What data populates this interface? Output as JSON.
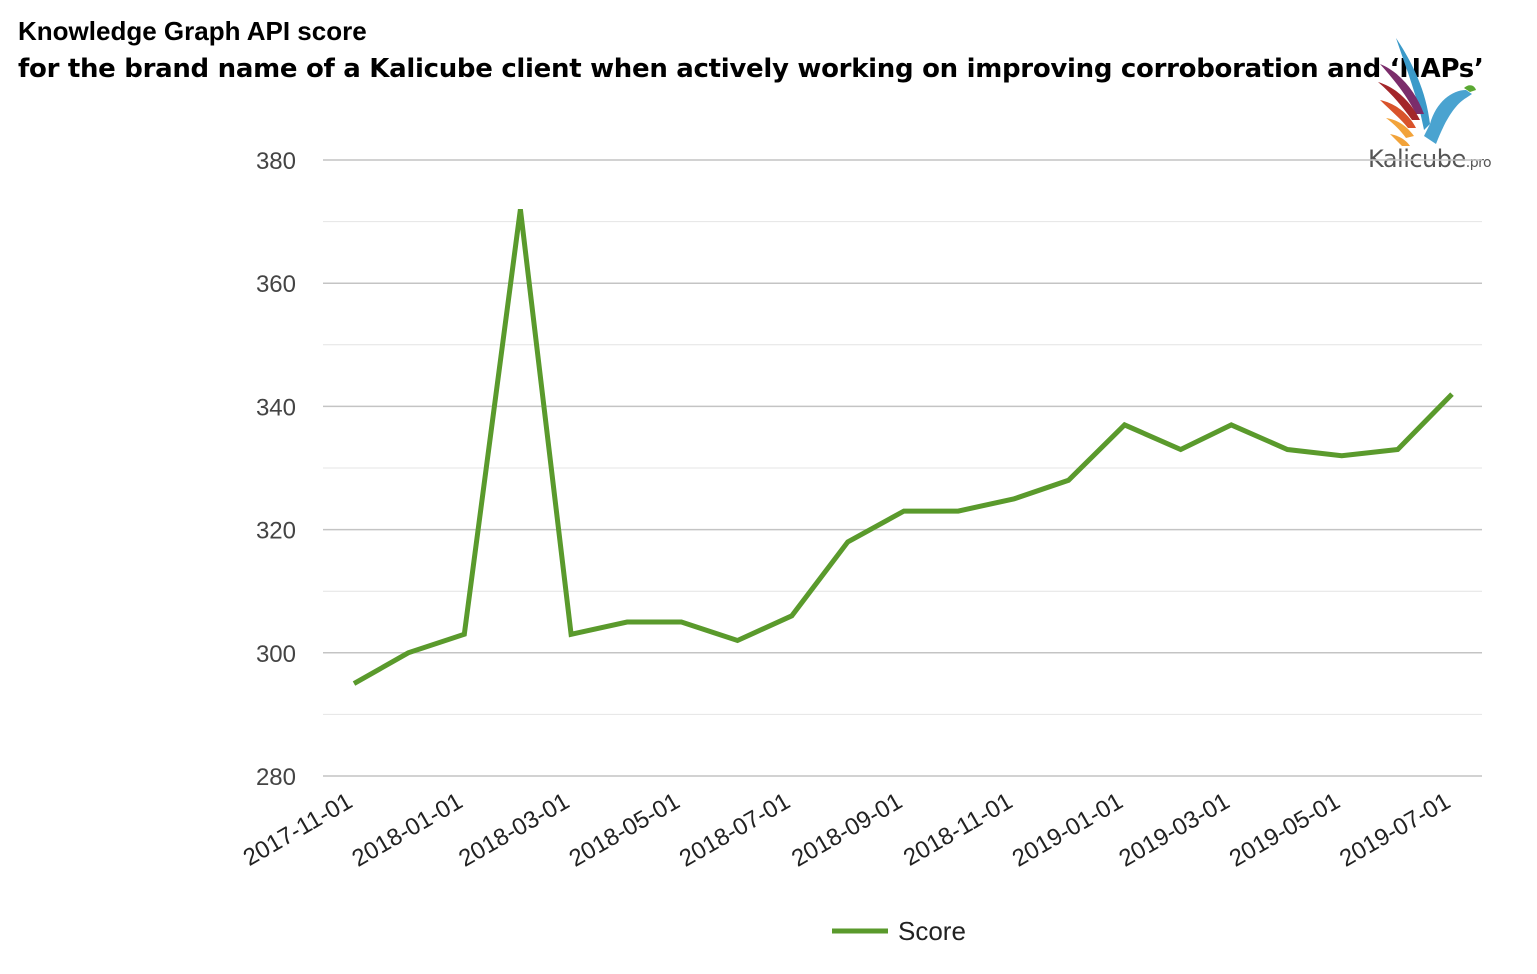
{
  "header": {
    "title": "Knowledge Graph API score",
    "subtitle": "for the brand name of a Kalicube client when actively working on improving corroboration and ‘NAPs’"
  },
  "logo": {
    "brand": "Kalicube",
    "suffix": ".pro",
    "colors": [
      "#7b2d6b",
      "#a3262a",
      "#d9532b",
      "#f2a33a",
      "#3b9ac9",
      "#5aa832"
    ]
  },
  "chart_data": {
    "type": "line",
    "title": "Knowledge Graph API score",
    "xlabel": "",
    "ylabel": "",
    "ylim": [
      280,
      380
    ],
    "yticks": [
      280,
      300,
      320,
      340,
      360,
      380
    ],
    "x_tick_labels": [
      "2017-11-01",
      "2018-01-01",
      "2018-03-01",
      "2018-05-01",
      "2018-07-01",
      "2018-09-01",
      "2018-11-01",
      "2019-01-01",
      "2019-03-01",
      "2019-05-01",
      "2019-07-01"
    ],
    "grid": true,
    "legend": "bottom",
    "series": [
      {
        "name": "Score",
        "color": "#5a9a2c",
        "x": [
          "2017-11-01",
          "2017-12-01",
          "2018-01-01",
          "2018-02-01",
          "2018-03-01",
          "2018-04-01",
          "2018-05-01",
          "2018-06-01",
          "2018-07-01",
          "2018-08-01",
          "2018-09-01",
          "2018-10-01",
          "2018-11-01",
          "2018-12-01",
          "2019-01-01",
          "2019-02-01",
          "2019-03-01",
          "2019-04-01",
          "2019-05-01",
          "2019-06-01",
          "2019-07-01"
        ],
        "values": [
          295,
          300,
          303,
          372,
          303,
          305,
          305,
          302,
          306,
          318,
          323,
          323,
          325,
          328,
          337,
          333,
          337,
          333,
          332,
          333,
          342
        ]
      }
    ]
  }
}
